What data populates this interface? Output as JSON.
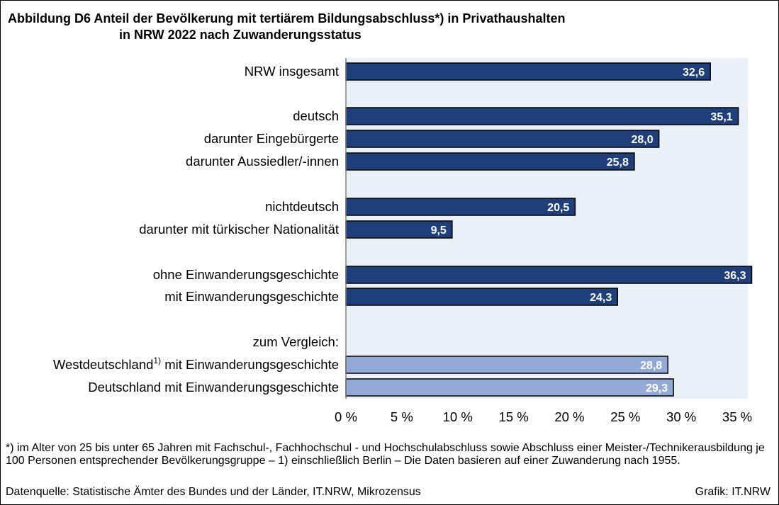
{
  "title": {
    "line1": "Abbildung D6  Anteil der Bevölkerung mit tertiärem Bildungsabschluss*) in Privathaushalten",
    "line2": "in NRW 2022 nach Zuwanderungsstatus"
  },
  "chart_data": {
    "type": "bar",
    "orientation": "horizontal",
    "xlim": [
      0,
      35
    ],
    "x_ticks": [
      "0 %",
      "5 %",
      "10 %",
      "15 %",
      "20 %",
      "25 %",
      "30 %",
      "35 %"
    ],
    "categories": [
      {
        "label": "NRW insgesamt",
        "value": 32.6,
        "value_label": "32,6",
        "color": "#1f3f7a"
      },
      {
        "label": "deutsch",
        "value": 35.1,
        "value_label": "35,1",
        "color": "#1f3f7a"
      },
      {
        "label": "darunter Eingebürgerte",
        "value": 28.0,
        "value_label": "28,0",
        "color": "#1f3f7a"
      },
      {
        "label": "darunter Aussiedler/-innen",
        "value": 25.8,
        "value_label": "25,8",
        "color": "#1f3f7a"
      },
      {
        "label": "nichtdeutsch",
        "value": 20.5,
        "value_label": "20,5",
        "color": "#1f3f7a"
      },
      {
        "label": "darunter mit türkischer Nationalität",
        "value": 9.5,
        "value_label": "9,5",
        "color": "#1f3f7a"
      },
      {
        "label": "ohne Einwanderungsgeschichte",
        "value": 36.3,
        "value_label": "36,3",
        "color": "#1f3f7a"
      },
      {
        "label": "mit Einwanderungsgeschichte",
        "value": 24.3,
        "value_label": "24,3",
        "color": "#1f3f7a"
      },
      {
        "label": "zum Vergleich:",
        "value": null,
        "value_label": "",
        "color": ""
      },
      {
        "label": "Westdeutschland",
        "label_sup": "1)",
        "label_rest": " mit Einwanderungsgeschichte",
        "value": 28.8,
        "value_label": "28,8",
        "color": "#93a9d6"
      },
      {
        "label": "Deutschland mit Einwanderungsgeschichte",
        "value": 29.3,
        "value_label": "29,3",
        "color": "#93a9d6"
      }
    ],
    "grid": false,
    "plot_background": "#eaf0f8"
  },
  "footnote": "*) im Alter von 25 bis unter 65 Jahren mit Fachschul-, Fachhochschul - und Hochschulabschluss sowie Abschluss einer Meister-/Technikerausbildung je 100 Personen entsprechender Bevölkerungsgruppe – 1) einschließlich Berlin – Die Daten basieren auf einer Zuwanderung nach 1955.",
  "source": "Datenquelle: Statistische Ämter des Bundes und der Länder, IT.NRW, Mikrozensus",
  "credit": "Grafik: IT.NRW"
}
